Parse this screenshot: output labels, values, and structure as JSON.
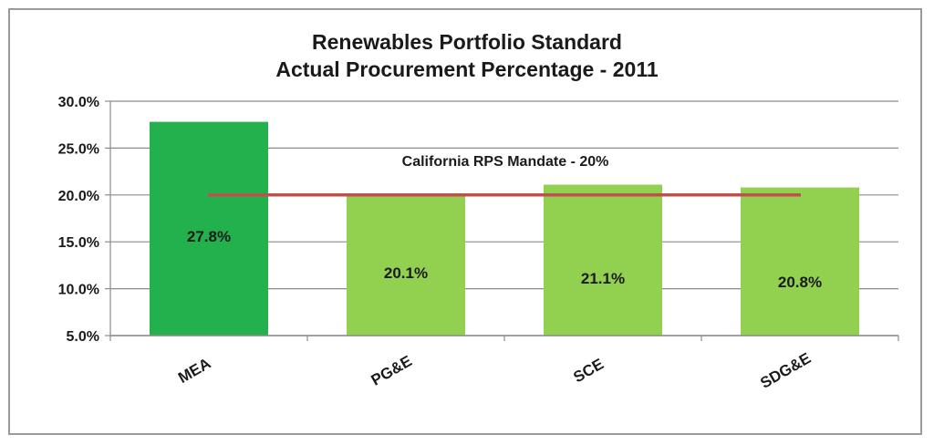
{
  "chart_data": {
    "type": "bar",
    "title_lines": [
      "Renewables Portfolio Standard",
      "Actual Procurement Percentage - 2011"
    ],
    "categories": [
      "MEA",
      "PG&E",
      "SCE",
      "SDG&E"
    ],
    "values": [
      27.8,
      20.1,
      21.1,
      20.8
    ],
    "value_labels": [
      "27.8%",
      "20.1%",
      "21.1%",
      "20.8%"
    ],
    "ylim": [
      5,
      30
    ],
    "yticks": [
      5,
      10,
      15,
      20,
      25,
      30
    ],
    "ytick_labels": [
      "5.0%",
      "10.0%",
      "15.0%",
      "20.0%",
      "25.0%",
      "30.0%"
    ],
    "grid": true,
    "reference_line": {
      "value": 20,
      "label": "California RPS Mandate - 20%",
      "color": "#c0504d"
    },
    "bar_colors": [
      "#22b14c",
      "#92d050",
      "#92d050",
      "#92d050"
    ],
    "xlabel": "",
    "ylabel": ""
  }
}
